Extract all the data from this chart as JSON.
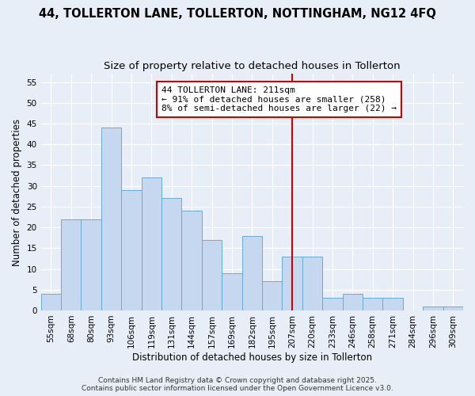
{
  "title": "44, TOLLERTON LANE, TOLLERTON, NOTTINGHAM, NG12 4FQ",
  "subtitle": "Size of property relative to detached houses in Tollerton",
  "xlabel": "Distribution of detached houses by size in Tollerton",
  "ylabel": "Number of detached properties",
  "bar_labels": [
    "55sqm",
    "68sqm",
    "80sqm",
    "93sqm",
    "106sqm",
    "119sqm",
    "131sqm",
    "144sqm",
    "157sqm",
    "169sqm",
    "182sqm",
    "195sqm",
    "207sqm",
    "220sqm",
    "233sqm",
    "246sqm",
    "258sqm",
    "271sqm",
    "284sqm",
    "296sqm",
    "309sqm"
  ],
  "bar_values": [
    4,
    22,
    22,
    44,
    29,
    32,
    27,
    24,
    17,
    9,
    18,
    7,
    13,
    13,
    3,
    4,
    3,
    3,
    0,
    1,
    1
  ],
  "bar_color": "#c5d8f0",
  "bar_edge_color": "#6aaad4",
  "vline_x_index": 12,
  "vline_color": "#cc0000",
  "annotation_title": "44 TOLLERTON LANE: 211sqm",
  "annotation_line1": "← 91% of detached houses are smaller (258)",
  "annotation_line2": "8% of semi-detached houses are larger (22) →",
  "annotation_box_color": "#ffffff",
  "annotation_box_edge_color": "#cc0000",
  "ylim": [
    0,
    57
  ],
  "yticks": [
    0,
    5,
    10,
    15,
    20,
    25,
    30,
    35,
    40,
    45,
    50,
    55
  ],
  "background_color": "#e8eef8",
  "grid_color": "#ffffff",
  "footer_line1": "Contains HM Land Registry data © Crown copyright and database right 2025.",
  "footer_line2": "Contains public sector information licensed under the Open Government Licence v3.0.",
  "title_fontsize": 10.5,
  "subtitle_fontsize": 9.5,
  "axis_label_fontsize": 8.5,
  "tick_fontsize": 7.5,
  "annotation_fontsize": 8,
  "footer_fontsize": 6.5
}
